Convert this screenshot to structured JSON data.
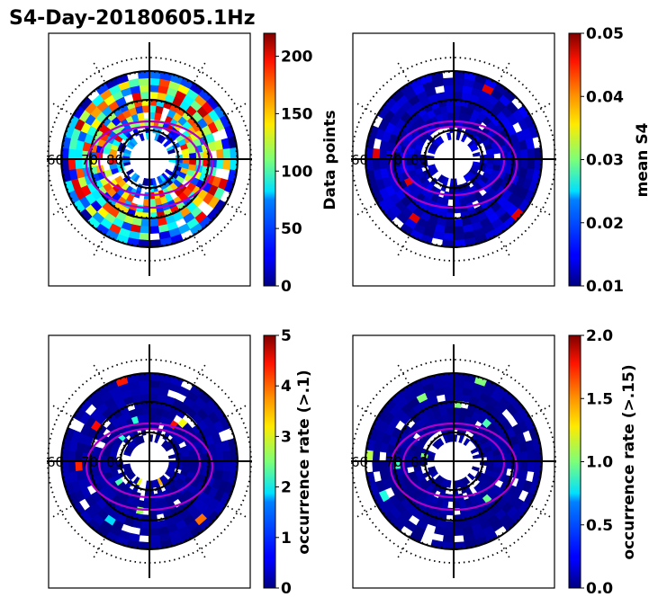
{
  "figure": {
    "title": "S4-Day-20180605.1Hz"
  },
  "colors": {
    "contour": "#b000c8",
    "frame": "#000000",
    "background": "#ffffff"
  },
  "chart_data": [
    {
      "type": "heatmap",
      "projection": "polar",
      "colorbar_label": "Data points",
      "colormap": "jet",
      "vmin": 0,
      "vmax": 220,
      "colorbar_ticks": [
        "0",
        "50",
        "100",
        "150",
        "200"
      ],
      "colorbar_tick_values": [
        0,
        50,
        100,
        150,
        200
      ],
      "lat_labels": [
        "60",
        "70",
        "80"
      ],
      "field": "high-variance"
    },
    {
      "type": "heatmap",
      "projection": "polar",
      "colorbar_label": "mean S4",
      "colormap": "jet",
      "vmin": 0.01,
      "vmax": 0.05,
      "colorbar_ticks": [
        "0.01",
        "0.02",
        "0.03",
        "0.04",
        "0.05"
      ],
      "colorbar_tick_values": [
        0.01,
        0.02,
        0.03,
        0.04,
        0.05
      ],
      "lat_labels": [
        "60",
        "70",
        "80"
      ],
      "field": "low"
    },
    {
      "type": "heatmap",
      "projection": "polar",
      "colorbar_label": "occurrence rate (>.1)",
      "colormap": "jet",
      "vmin": 0,
      "vmax": 5,
      "colorbar_ticks": [
        "0",
        "1",
        "2",
        "3",
        "4",
        "5"
      ],
      "colorbar_tick_values": [
        0,
        1,
        2,
        3,
        4,
        5
      ],
      "lat_labels": [
        "60",
        "70",
        "80"
      ],
      "field": "sparse"
    },
    {
      "type": "heatmap",
      "projection": "polar",
      "colorbar_label": "occurrence rate (>.15)",
      "colormap": "jet",
      "vmin": 0.0,
      "vmax": 2.0,
      "colorbar_ticks": [
        "0.0",
        "0.5",
        "1.0",
        "1.5",
        "2.0"
      ],
      "colorbar_tick_values": [
        0.0,
        0.5,
        1.0,
        1.5,
        2.0
      ],
      "lat_labels": [
        "60",
        "70",
        "80"
      ],
      "field": "very-sparse"
    }
  ]
}
